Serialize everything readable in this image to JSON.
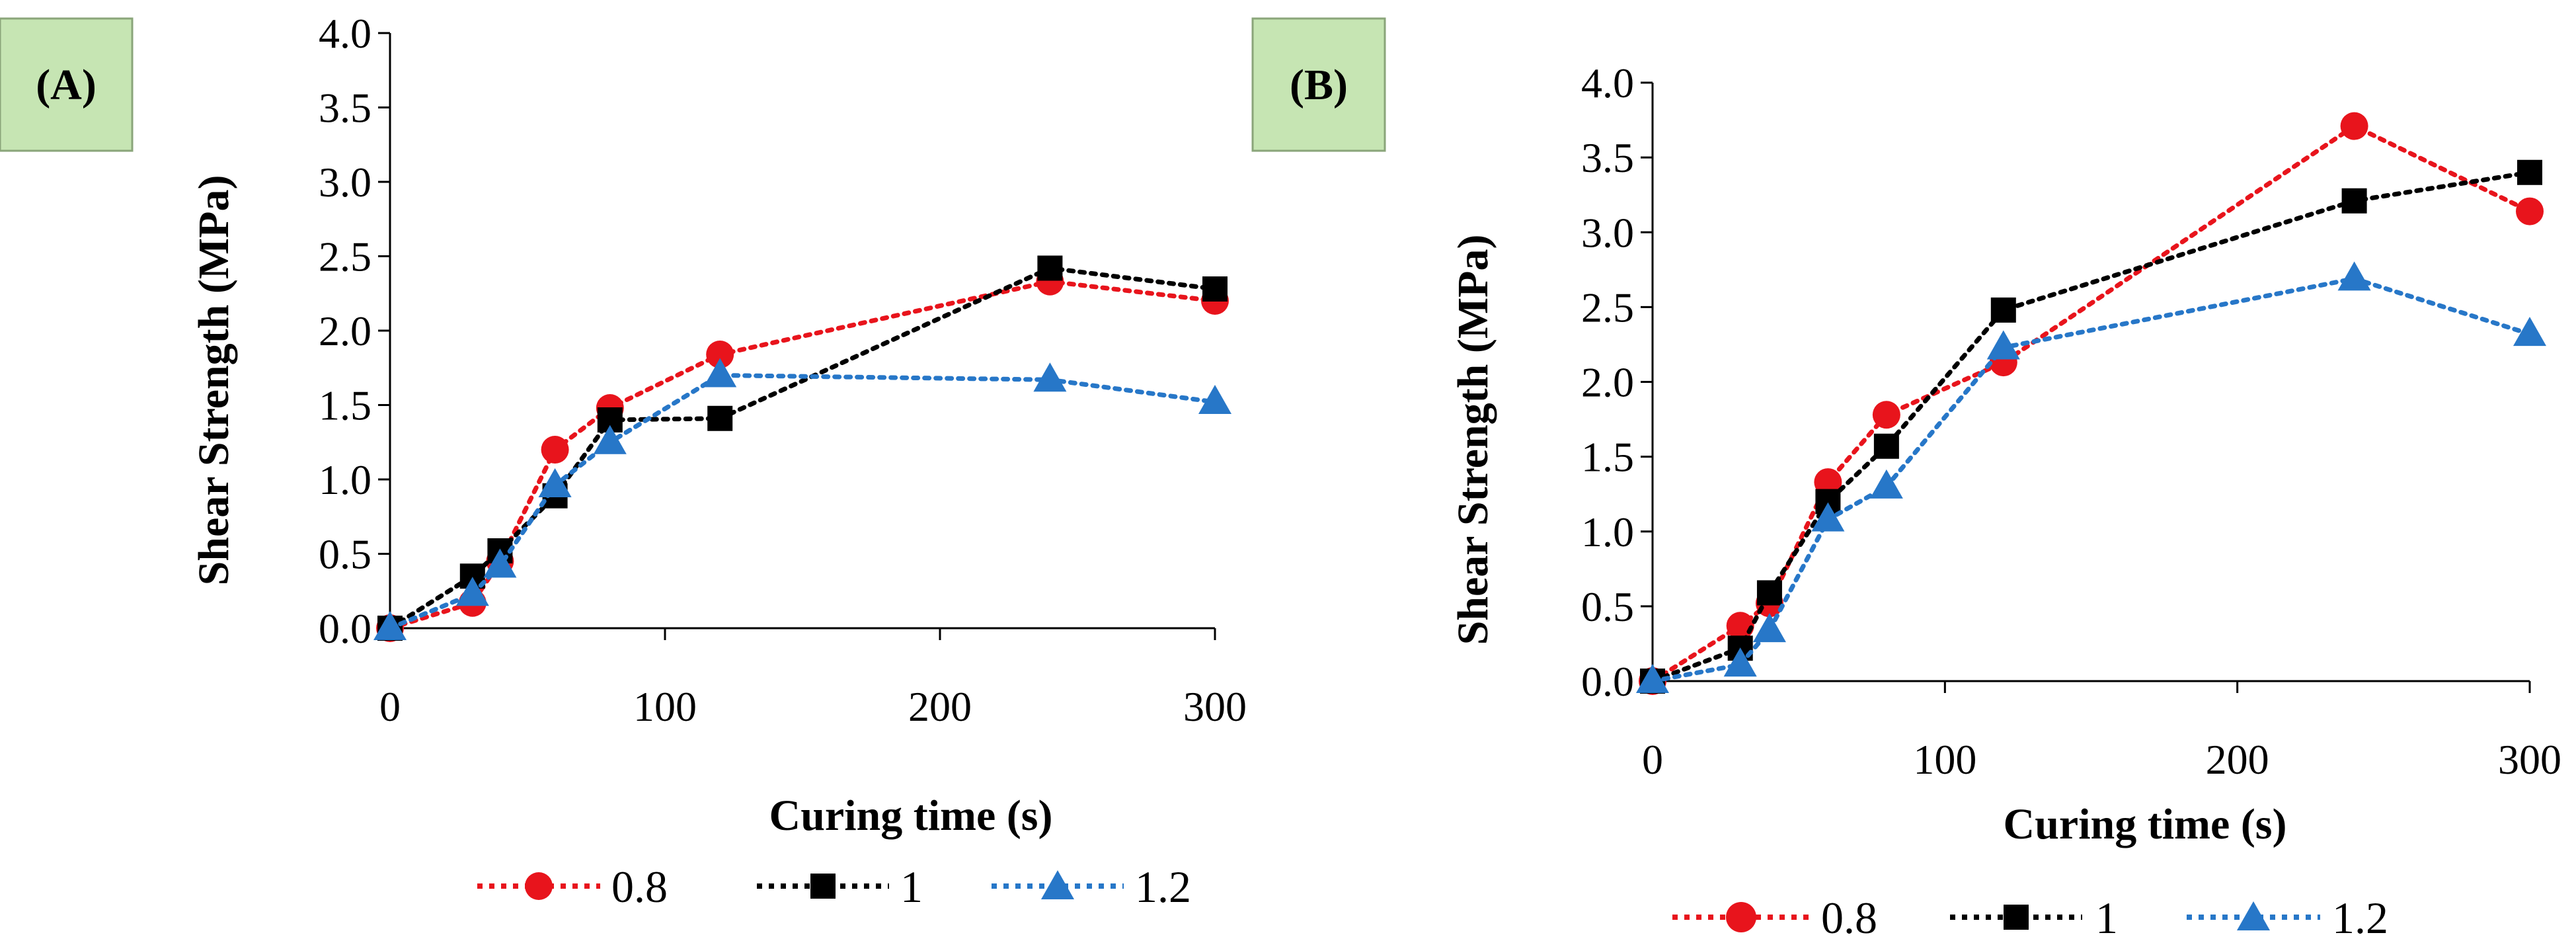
{
  "colors": {
    "s0.8": "#e8141c",
    "s1": "#000000",
    "s1.2": "#2777c8",
    "label_bg": "#c6e5b3"
  },
  "chart_data": [
    {
      "type": "line",
      "panel_label": "(A)",
      "xlabel": "Curing time (s)",
      "ylabel": "Shear Strength (MPa)",
      "xlim": [
        0,
        300
      ],
      "ylim": [
        0,
        4
      ],
      "x_ticks": [
        "0",
        "100",
        "200",
        "300"
      ],
      "y_ticks": [
        "0.0",
        "0.5",
        "1.0",
        "1.5",
        "2.0",
        "2.5",
        "3.0",
        "3.5",
        "4.0"
      ],
      "x": [
        0,
        30,
        40,
        60,
        80,
        120,
        240,
        300
      ],
      "series": [
        {
          "name": "0.8",
          "marker": "circle",
          "values": [
            0.0,
            0.17,
            0.45,
            1.2,
            1.48,
            1.84,
            2.33,
            2.2
          ]
        },
        {
          "name": "1",
          "marker": "square",
          "values": [
            0.0,
            0.35,
            0.52,
            0.89,
            1.4,
            1.41,
            2.42,
            2.28
          ]
        },
        {
          "name": "1.2",
          "marker": "triangle",
          "values": [
            0.0,
            0.23,
            0.42,
            0.96,
            1.25,
            1.7,
            1.67,
            1.52
          ]
        }
      ]
    },
    {
      "type": "line",
      "panel_label": "(B)",
      "xlabel": "Curing time (s)",
      "ylabel": "Shear Strength (MPa)",
      "xlim": [
        0,
        300
      ],
      "ylim": [
        0,
        4
      ],
      "x_ticks": [
        "0",
        "100",
        "200",
        "300"
      ],
      "y_ticks": [
        "0.0",
        "0.5",
        "1.0",
        "1.5",
        "2.0",
        "2.5",
        "3.0",
        "3.5",
        "4.0"
      ],
      "x": [
        0,
        30,
        40,
        60,
        80,
        120,
        240,
        300
      ],
      "series": [
        {
          "name": "0.8",
          "marker": "circle",
          "values": [
            0.0,
            0.37,
            0.52,
            1.33,
            1.78,
            2.13,
            3.71,
            3.14
          ]
        },
        {
          "name": "1",
          "marker": "square",
          "values": [
            0.0,
            0.22,
            0.59,
            1.2,
            1.57,
            2.48,
            3.21,
            3.4
          ]
        },
        {
          "name": "1.2",
          "marker": "triangle",
          "values": [
            0.0,
            0.11,
            0.34,
            1.08,
            1.3,
            2.23,
            2.69,
            2.32
          ]
        }
      ]
    }
  ]
}
